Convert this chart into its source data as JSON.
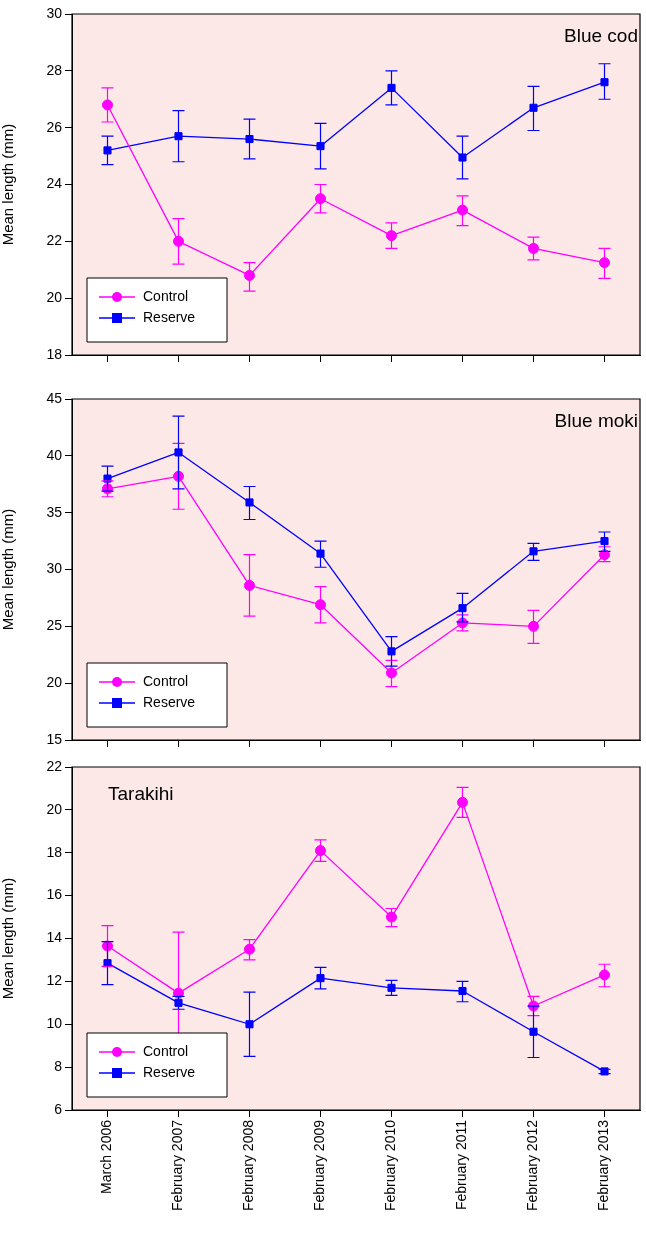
{
  "chart_data": [
    {
      "type": "line",
      "title": "Blue cod",
      "ylabel": "Mean length (mm)",
      "ylim": [
        18,
        30
      ],
      "yticks": [
        18,
        20,
        22,
        24,
        26,
        28,
        30
      ],
      "grid": false,
      "legend": "bottom left",
      "tick_labels": "y",
      "line_style": "solid",
      "series": [
        {
          "name": "Control",
          "color": "#ff00ff",
          "marker": "circle",
          "values": [
            26.8,
            22.0,
            20.8,
            23.5,
            22.2,
            23.1,
            21.75,
            21.25
          ],
          "errors": [
            [
              26.2,
              27.4
            ],
            [
              21.2,
              22.8
            ],
            [
              20.25,
              21.25
            ],
            [
              23.0,
              24.0
            ],
            [
              21.75,
              22.65
            ],
            [
              22.55,
              23.6
            ],
            [
              21.35,
              22.15
            ],
            [
              20.7,
              21.75
            ]
          ]
        },
        {
          "name": "Reserve",
          "color": "#0000ff",
          "marker": "square",
          "values": [
            25.2,
            25.7,
            25.6,
            25.35,
            27.4,
            24.95,
            26.7,
            27.6
          ],
          "errors": [
            [
              24.7,
              25.7
            ],
            [
              24.8,
              26.6
            ],
            [
              24.9,
              26.3
            ],
            [
              24.55,
              26.15
            ],
            [
              26.8,
              28.0
            ],
            [
              24.2,
              25.7
            ],
            [
              25.9,
              27.45
            ],
            [
              27.0,
              28.25
            ]
          ]
        }
      ]
    },
    {
      "type": "line",
      "title": "Blue moki",
      "ylabel": "Mean length (mm)",
      "ylim": [
        15,
        45
      ],
      "yticks": [
        15,
        20,
        25,
        30,
        35,
        40,
        45
      ],
      "grid": false,
      "legend": "bottom left",
      "tick_labels": "y",
      "line_style": "solid",
      "series": [
        {
          "name": "Control",
          "color": "#ff00ff",
          "marker": "circle",
          "values": [
            37.1,
            38.2,
            28.6,
            26.9,
            20.9,
            25.3,
            25.0,
            31.3
          ],
          "errors": [
            [
              36.4,
              37.8
            ],
            [
              35.3,
              41.1
            ],
            [
              25.9,
              31.3
            ],
            [
              25.3,
              28.5
            ],
            [
              19.7,
              22.0
            ],
            [
              24.6,
              26.0
            ],
            [
              23.5,
              26.4
            ],
            [
              30.7,
              32.0
            ]
          ]
        },
        {
          "name": "Reserve",
          "color": "#0000ff",
          "marker": "square",
          "values": [
            38.0,
            40.3,
            35.9,
            31.4,
            22.8,
            26.6,
            31.6,
            32.5
          ],
          "errors": [
            [
              36.9,
              39.1
            ],
            [
              37.1,
              43.5
            ],
            [
              34.4,
              37.3
            ],
            [
              30.2,
              32.5
            ],
            [
              21.5,
              24.1
            ],
            [
              25.4,
              27.9
            ],
            [
              30.8,
              32.3
            ],
            [
              31.6,
              33.3
            ]
          ]
        }
      ]
    },
    {
      "type": "line",
      "title": "Tarakihi",
      "ylabel": "Mean length (mm)",
      "categories": [
        "March 2006",
        "February 2007",
        "February 2008",
        "February 2009",
        "February 2010",
        "February 2011",
        "February 2012",
        "February 2013"
      ],
      "ylim": [
        6,
        22
      ],
      "yticks": [
        6,
        8,
        10,
        12,
        14,
        16,
        18,
        20,
        22
      ],
      "grid": false,
      "legend": "bottom left",
      "line_style": "solid",
      "series": [
        {
          "name": "Control",
          "color": "#ff00ff",
          "marker": "circle",
          "values": [
            13.65,
            11.45,
            13.5,
            18.1,
            15.0,
            20.35,
            10.85,
            12.3
          ],
          "errors": [
            [
              12.7,
              14.6
            ],
            [
              8.6,
              14.3
            ],
            [
              13.0,
              13.95
            ],
            [
              17.6,
              18.6
            ],
            [
              14.55,
              15.4
            ],
            [
              19.65,
              21.05
            ],
            [
              10.4,
              11.3
            ],
            [
              11.75,
              12.8
            ]
          ]
        },
        {
          "name": "Reserve",
          "color": "#0000ff",
          "marker": "square",
          "values": [
            12.85,
            11.0,
            10.0,
            12.15,
            11.7,
            11.55,
            9.65,
            7.8
          ],
          "errors": [
            [
              11.85,
              13.85
            ],
            [
              10.7,
              11.3
            ],
            [
              8.5,
              11.5
            ],
            [
              11.65,
              12.65
            ],
            [
              11.35,
              12.05
            ],
            [
              11.05,
              12.0
            ],
            [
              8.45,
              10.85
            ],
            [
              7.7,
              7.9
            ]
          ]
        }
      ]
    }
  ]
}
